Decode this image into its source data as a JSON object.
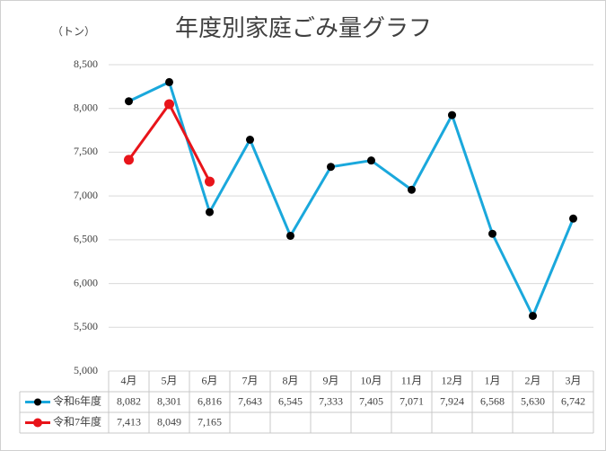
{
  "chart_data": {
    "type": "line",
    "title": "年度別家庭ごみ量グラフ",
    "y_unit": "（トン）",
    "categories": [
      "4月",
      "5月",
      "6月",
      "7月",
      "8月",
      "9月",
      "10月",
      "11月",
      "12月",
      "1月",
      "2月",
      "3月"
    ],
    "series": [
      {
        "name": "令和6年度",
        "color": "#1aa8dc",
        "marker_color": "#000000",
        "values": [
          8082,
          8301,
          6816,
          7643,
          6545,
          7333,
          7405,
          7071,
          7924,
          6568,
          5630,
          6742
        ],
        "value_labels": [
          "8,082",
          "8,301",
          "6,816",
          "7,643",
          "6,545",
          "7,333",
          "7,405",
          "7,071",
          "7,924",
          "6,568",
          "5,630",
          "6,742"
        ]
      },
      {
        "name": "令和7年度",
        "color": "#e8141a",
        "marker_color": "#e8141a",
        "values": [
          7413,
          8049,
          7165,
          null,
          null,
          null,
          null,
          null,
          null,
          null,
          null,
          null
        ],
        "value_labels": [
          "7,413",
          "8,049",
          "7,165",
          null,
          null,
          null,
          null,
          null,
          null,
          null,
          null,
          null
        ]
      }
    ],
    "ylim": [
      5000,
      8500
    ],
    "yticks": [
      {
        "value": 5000,
        "label": "5,000"
      },
      {
        "value": 5500,
        "label": "5,500"
      },
      {
        "value": 6000,
        "label": "6,000"
      },
      {
        "value": 6500,
        "label": "6,500"
      },
      {
        "value": 7000,
        "label": "7,000"
      },
      {
        "value": 7500,
        "label": "7,500"
      },
      {
        "value": 8000,
        "label": "8,000"
      },
      {
        "value": 8500,
        "label": "8,500"
      }
    ],
    "grid": true
  }
}
